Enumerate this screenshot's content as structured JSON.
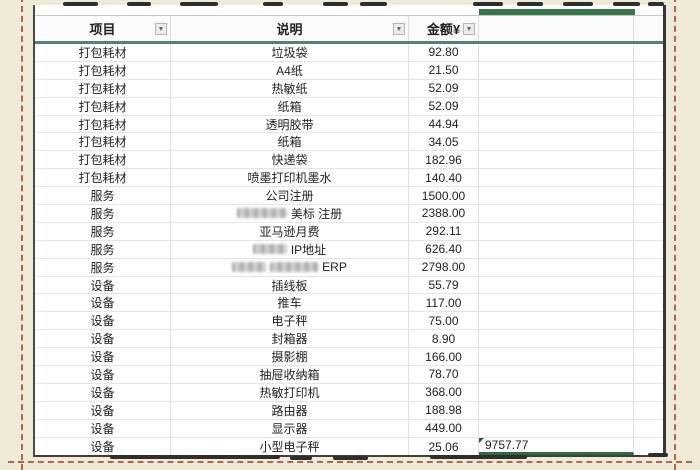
{
  "sheet": {
    "columns": [
      {
        "label": "项目",
        "filter": true
      },
      {
        "label": "说明",
        "filter": true
      },
      {
        "label": "金额¥",
        "filter": true
      },
      {
        "label": "",
        "filter": false
      },
      {
        "label": "",
        "filter": false
      }
    ],
    "filter_icon": "▼",
    "rows": [
      {
        "category": "打包耗材",
        "desc": [
          {
            "text": "垃圾袋"
          }
        ],
        "amount": "92.80",
        "extra": ""
      },
      {
        "category": "打包耗材",
        "desc": [
          {
            "text": "A4纸"
          }
        ],
        "amount": "21.50",
        "extra": ""
      },
      {
        "category": "打包耗材",
        "desc": [
          {
            "text": "热敏纸"
          }
        ],
        "amount": "52.09",
        "extra": ""
      },
      {
        "category": "打包耗材",
        "desc": [
          {
            "text": "纸箱"
          }
        ],
        "amount": "52.09",
        "extra": ""
      },
      {
        "category": "打包耗材",
        "desc": [
          {
            "text": "透明胶带"
          }
        ],
        "amount": "44.94",
        "extra": ""
      },
      {
        "category": "打包耗材",
        "desc": [
          {
            "text": "纸箱"
          }
        ],
        "amount": "34.05",
        "extra": ""
      },
      {
        "category": "打包耗材",
        "desc": [
          {
            "text": "快递袋"
          }
        ],
        "amount": "182.96",
        "extra": ""
      },
      {
        "category": "打包耗材",
        "desc": [
          {
            "text": "喷墨打印机墨水"
          }
        ],
        "amount": "140.40",
        "extra": ""
      },
      {
        "category": "服务",
        "desc": [
          {
            "text": "公司注册"
          }
        ],
        "amount": "1500.00",
        "extra": ""
      },
      {
        "category": "服务",
        "desc": [
          {
            "blur": 50
          },
          {
            "text": "美标 注册"
          }
        ],
        "amount": "2388.00",
        "extra": ""
      },
      {
        "category": "服务",
        "desc": [
          {
            "text": "亚马逊月费"
          }
        ],
        "amount": "292.11",
        "extra": ""
      },
      {
        "category": "服务",
        "desc": [
          {
            "blur": 34
          },
          {
            "text": "IP地址"
          }
        ],
        "amount": "626.40",
        "extra": ""
      },
      {
        "category": "服务",
        "desc": [
          {
            "blur": 34
          },
          {
            "blur": 48
          },
          {
            "text": "ERP"
          }
        ],
        "amount": "2798.00",
        "extra": ""
      },
      {
        "category": "设备",
        "desc": [
          {
            "text": "插线板"
          }
        ],
        "amount": "55.79",
        "extra": ""
      },
      {
        "category": "设备",
        "desc": [
          {
            "text": "推车"
          }
        ],
        "amount": "117.00",
        "extra": ""
      },
      {
        "category": "设备",
        "desc": [
          {
            "text": "电子秤"
          }
        ],
        "amount": "75.00",
        "extra": ""
      },
      {
        "category": "设备",
        "desc": [
          {
            "text": "封箱器"
          }
        ],
        "amount": "8.90",
        "extra": ""
      },
      {
        "category": "设备",
        "desc": [
          {
            "text": "摄影棚"
          }
        ],
        "amount": "166.00",
        "extra": ""
      },
      {
        "category": "设备",
        "desc": [
          {
            "text": "抽屉收纳箱"
          }
        ],
        "amount": "78.70",
        "extra": ""
      },
      {
        "category": "设备",
        "desc": [
          {
            "text": "热敏打印机"
          }
        ],
        "amount": "368.00",
        "extra": ""
      },
      {
        "category": "设备",
        "desc": [
          {
            "text": "路由器"
          }
        ],
        "amount": "188.98",
        "extra": ""
      },
      {
        "category": "设备",
        "desc": [
          {
            "text": "显示器"
          }
        ],
        "amount": "449.00",
        "extra": ""
      },
      {
        "category": "设备",
        "desc": [
          {
            "text": "小型电子秤"
          }
        ],
        "amount": "25.06",
        "extra": "9757.77"
      }
    ],
    "grand_total": "9757.77",
    "colors": {
      "frame_background": "#efe9d8",
      "dotted_border": "#a85a40",
      "header_underline": "#4e8471",
      "green_accent": "#36774a",
      "total_underline": "#2e6b3f",
      "table_border": "#3f3f3f",
      "text": "#1f1f1f"
    }
  }
}
